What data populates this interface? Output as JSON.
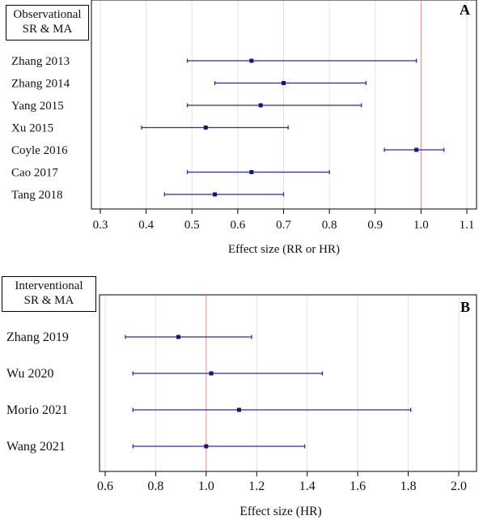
{
  "chart_data": [
    {
      "type": "forest",
      "panel_label": "A",
      "title_lines": [
        "Observational",
        "SR & MA"
      ],
      "xlabel": "Effect size (RR or HR)",
      "xlim": [
        0.3,
        1.1
      ],
      "ticks": [
        "0.3",
        "0.4",
        "0.5",
        "0.6",
        "0.7",
        "0.8",
        "0.9",
        "1.0",
        "1.1"
      ],
      "reference_line": 1.0,
      "studies": [
        {
          "label": "Zhang 2013",
          "estimate": 0.63,
          "lower": 0.49,
          "upper": 0.99
        },
        {
          "label": "Zhang 2014",
          "estimate": 0.7,
          "lower": 0.55,
          "upper": 0.88
        },
        {
          "label": "Yang 2015",
          "estimate": 0.65,
          "lower": 0.49,
          "upper": 0.87
        },
        {
          "label": "Xu 2015",
          "estimate": 0.53,
          "lower": 0.39,
          "upper": 0.71
        },
        {
          "label": "Coyle 2016",
          "estimate": 0.99,
          "lower": 0.92,
          "upper": 1.05
        },
        {
          "label": "Cao 2017",
          "estimate": 0.63,
          "lower": 0.49,
          "upper": 0.8
        },
        {
          "label": "Tang 2018",
          "estimate": 0.55,
          "lower": 0.44,
          "upper": 0.7
        }
      ]
    },
    {
      "type": "forest",
      "panel_label": "B",
      "title_lines": [
        "Interventional",
        "SR & MA"
      ],
      "xlabel": "Effect size (HR)",
      "xlim": [
        0.6,
        2.0
      ],
      "ticks": [
        "0.6",
        "0.8",
        "1.0",
        "1.2",
        "1.4",
        "1.6",
        "1.8",
        "2.0"
      ],
      "reference_line": 1.0,
      "studies": [
        {
          "label": "Zhang 2019",
          "estimate": 0.89,
          "lower": 0.68,
          "upper": 1.18
        },
        {
          "label": "Wu 2020",
          "estimate": 1.02,
          "lower": 0.71,
          "upper": 1.46
        },
        {
          "label": "Morio 2021",
          "estimate": 1.13,
          "lower": 0.71,
          "upper": 1.81
        },
        {
          "label": "Wang 2021",
          "estimate": 1.0,
          "lower": 0.71,
          "upper": 1.39
        }
      ]
    }
  ],
  "colors": {
    "interval": "#2b2f9e",
    "point": "#14147a",
    "reference": "#e8a0a0",
    "grid": "#e3e3e3",
    "axis": "#000000"
  }
}
